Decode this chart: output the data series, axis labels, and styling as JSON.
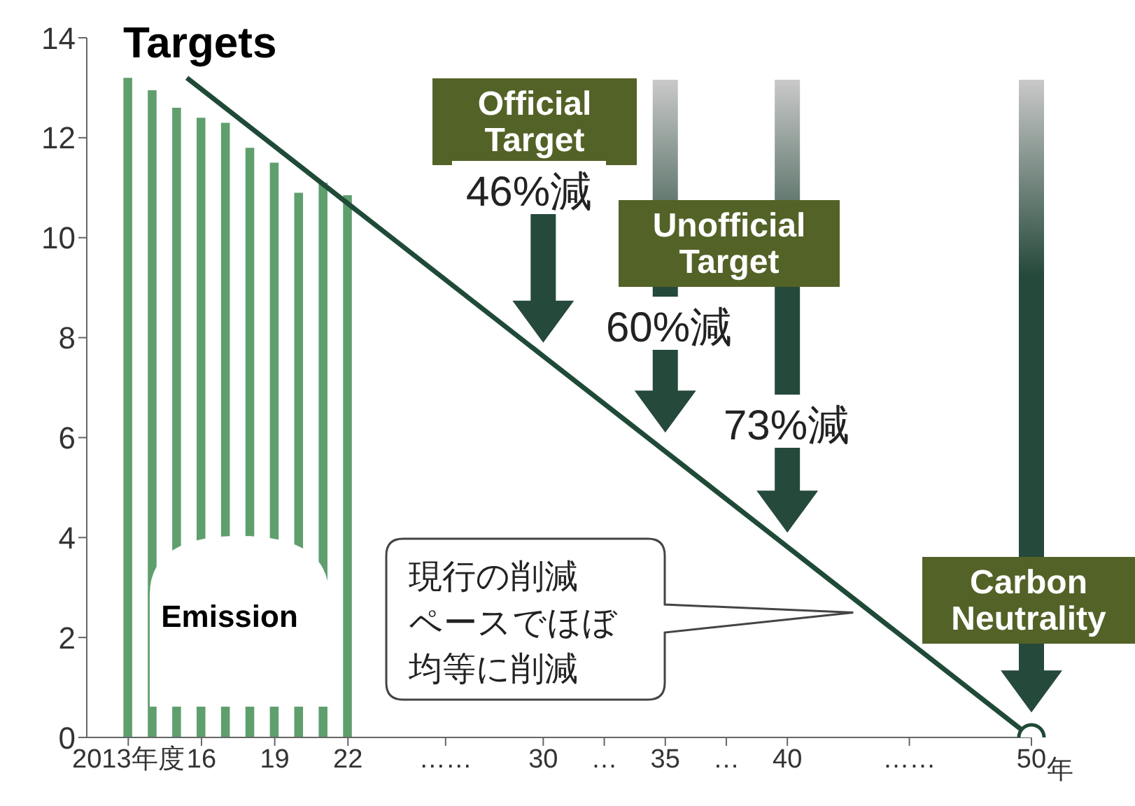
{
  "chart_data": {
    "type": "bar",
    "title": "Targets",
    "xlim": [
      2011.3,
      2050
    ],
    "xticks": [
      {
        "value": 2013,
        "label": "2013年度"
      },
      {
        "value": 2016,
        "label": "16"
      },
      {
        "value": 2019,
        "label": "19"
      },
      {
        "value": 2022,
        "label": "22"
      },
      {
        "value": 2026,
        "label": "……"
      },
      {
        "value": 2030,
        "label": "30"
      },
      {
        "value": 2032.5,
        "label": "…"
      },
      {
        "value": 2035,
        "label": "35"
      },
      {
        "value": 2037.5,
        "label": "…"
      },
      {
        "value": 2040,
        "label": "40"
      },
      {
        "value": 2045,
        "label": "……"
      },
      {
        "value": 2050,
        "label": "50"
      }
    ],
    "xlabel": "年",
    "ylim": [
      0,
      14
    ],
    "yticks": [
      0,
      2,
      4,
      6,
      8,
      10,
      12,
      14
    ],
    "grid": false,
    "series": [
      {
        "color": "#5f9f6e",
        "x": [
          2013,
          2014,
          2015,
          2016,
          2017,
          2018,
          2019,
          2020,
          2021,
          2022
        ],
        "values": [
          13.2,
          12.95,
          12.6,
          12.4,
          12.3,
          11.8,
          11.5,
          10.9,
          11.1,
          10.85
        ]
      },
      {
        "type": "line",
        "color": "#1f4a37",
        "marker": "none",
        "x": [
          2015.4,
          2050
        ],
        "values": [
          13.2,
          0
        ]
      },
      {
        "type": "scatter",
        "color": "#1f4a37",
        "marker": "circle",
        "x": [
          2050
        ],
        "values": [
          0
        ]
      }
    ],
    "annotations": [
      "Official Target",
      "46%減",
      "Unofficial Target",
      "60%減",
      "73%減",
      "Carbon Neutrality",
      "現行の削減ペースでほぼ均等に削減",
      "Emission"
    ]
  }
}
